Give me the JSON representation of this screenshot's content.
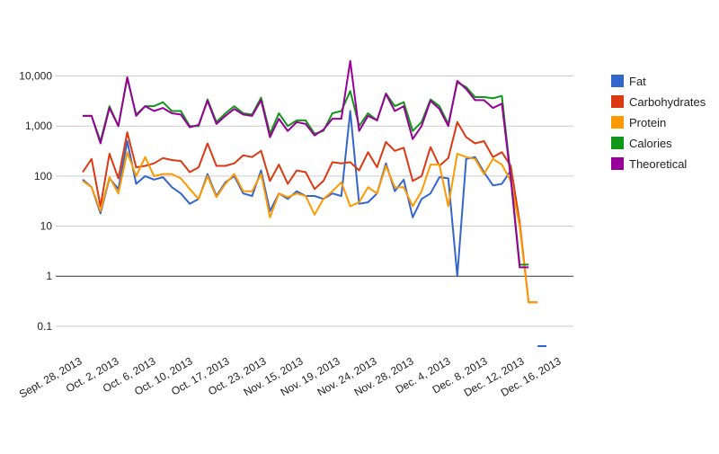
{
  "chart_data": {
    "type": "line",
    "title": "",
    "xlabel": "",
    "ylabel": "",
    "y_scale": "log",
    "ylim": [
      0.03,
      30000
    ],
    "y_ticks": [
      0.1,
      1,
      10,
      100,
      1000,
      10000
    ],
    "y_tick_labels": [
      "0.1",
      "1",
      "10",
      "100",
      "1,000",
      "10,000"
    ],
    "x_tick_labels": [
      "Sept. 28, 2013",
      "Oct. 2, 2013",
      "Oct. 6, 2013",
      "Oct. 10, 2013",
      "Oct. 17, 2013",
      "Oct. 23, 2013",
      "Nov. 15, 2013",
      "Nov. 19, 2013",
      "Nov. 24, 2013",
      "Nov. 28, 2013",
      "Dec. 4, 2013",
      "Dec. 8, 2013",
      "Dec. 12, 2013",
      "Dec. 16, 2013"
    ],
    "legend_position": "right",
    "grid": true,
    "series": [
      {
        "name": "Fat",
        "color": "#3366cc",
        "values": [
          85,
          60,
          18,
          90,
          55,
          500,
          70,
          100,
          85,
          95,
          60,
          45,
          28,
          35,
          110,
          40,
          75,
          100,
          45,
          40,
          130,
          20,
          45,
          35,
          50,
          40,
          40,
          35,
          45,
          40,
          2000,
          28,
          30,
          45,
          180,
          50,
          85,
          15,
          35,
          45,
          95,
          90,
          1,
          220,
          240,
          120,
          65,
          70,
          130,
          null,
          null,
          0.04,
          0.04
        ]
      },
      {
        "name": "Carbohydrates",
        "color": "#dc3912",
        "values": [
          120,
          220,
          25,
          280,
          90,
          750,
          150,
          160,
          180,
          230,
          210,
          200,
          120,
          150,
          450,
          160,
          160,
          180,
          260,
          240,
          320,
          80,
          170,
          70,
          130,
          120,
          55,
          80,
          190,
          180,
          190,
          130,
          300,
          150,
          480,
          320,
          370,
          80,
          100,
          380,
          160,
          230,
          1200,
          600,
          450,
          500,
          240,
          300,
          160,
          12,
          0.3,
          0.3,
          null
        ]
      },
      {
        "name": "Protein",
        "color": "#ff9900",
        "values": [
          80,
          60,
          20,
          95,
          45,
          300,
          100,
          240,
          100,
          110,
          110,
          90,
          55,
          35,
          100,
          38,
          70,
          110,
          50,
          50,
          110,
          15,
          45,
          38,
          45,
          40,
          17,
          35,
          50,
          75,
          25,
          30,
          60,
          45,
          160,
          60,
          60,
          25,
          50,
          170,
          170,
          25,
          280,
          240,
          220,
          110,
          220,
          170,
          80,
          10,
          0.3,
          0.3,
          null
        ]
      },
      {
        "name": "Calories",
        "color": "#109618",
        "values": [
          1600,
          1600,
          500,
          2500,
          1000,
          9000,
          1700,
          2500,
          2500,
          3000,
          2000,
          2000,
          1000,
          1000,
          3400,
          1200,
          1800,
          2500,
          1800,
          1700,
          3700,
          700,
          1800,
          1000,
          1300,
          1300,
          700,
          800,
          1800,
          2000,
          5000,
          1000,
          1800,
          1300,
          4500,
          2500,
          3000,
          800,
          1200,
          3400,
          2500,
          1100,
          7500,
          6000,
          3800,
          3800,
          3600,
          4000,
          100,
          1.7,
          1.7,
          null,
          null
        ]
      },
      {
        "name": "Theoretical",
        "color": "#990099",
        "values": [
          1600,
          1600,
          450,
          2300,
          1000,
          9500,
          1600,
          2500,
          2000,
          2300,
          1800,
          1700,
          950,
          1050,
          3200,
          1100,
          1600,
          2200,
          1700,
          1600,
          3300,
          600,
          1400,
          800,
          1200,
          1100,
          650,
          850,
          1400,
          1400,
          20000,
          800,
          1600,
          1300,
          4400,
          2000,
          2500,
          550,
          1000,
          3200,
          2200,
          1000,
          8000,
          5500,
          3300,
          3300,
          2300,
          2800,
          90,
          1.5,
          1.5,
          null,
          null
        ]
      }
    ]
  }
}
